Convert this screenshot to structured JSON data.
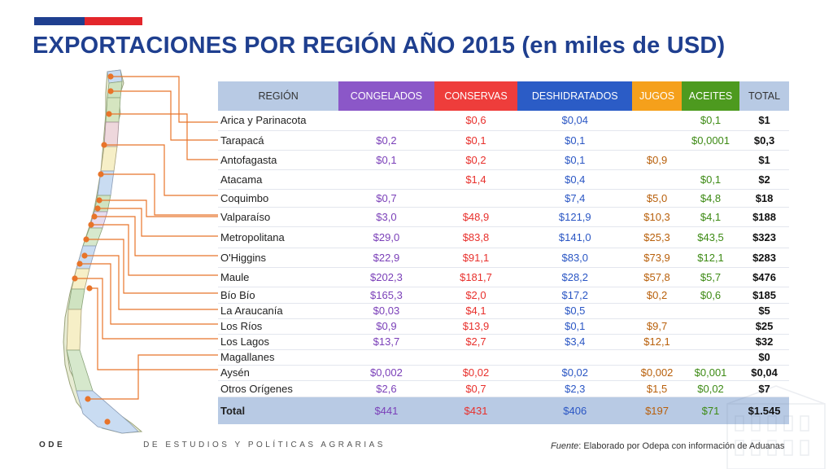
{
  "title": "EXPORTACIONES POR REGIÓN AÑO 2015 (en miles de USD)",
  "brand_colors": {
    "blue": "#1f3f8f",
    "red": "#e3262b"
  },
  "table": {
    "headers": [
      "REGIÓN",
      "CONGELADOS",
      "CONSERVAS",
      "DESHIDRATADOS",
      "JUGOS",
      "ACEITES",
      "TOTAL"
    ],
    "rows": [
      {
        "region": "Arica y Parinacota",
        "congelados": "",
        "conservas": "$0,6",
        "deshidratados": "$0,04",
        "jugos": "",
        "aceites": "$0,1",
        "total": "$1"
      },
      {
        "region": "Tarapacá",
        "congelados": "$0,2",
        "conservas": "$0,1",
        "deshidratados": "$0,1",
        "jugos": "",
        "aceites": "$0,0001",
        "total": "$0,3"
      },
      {
        "region": "Antofagasta",
        "congelados": "$0,1",
        "conservas": "$0,2",
        "deshidratados": "$0,1",
        "jugos": "$0,9",
        "aceites": "",
        "total": "$1"
      },
      {
        "region": "Atacama",
        "congelados": "",
        "conservas": "$1,4",
        "deshidratados": "$0,4",
        "jugos": "",
        "aceites": "$0,1",
        "total": "$2"
      },
      {
        "region": "Coquimbo",
        "congelados": "$0,7",
        "conservas": "",
        "deshidratados": "$7,4",
        "jugos": "$5,0",
        "aceites": "$4,8",
        "total": "$18"
      },
      {
        "region": "Valparaíso",
        "congelados": "$3,0",
        "conservas": "$48,9",
        "deshidratados": "$121,9",
        "jugos": "$10,3",
        "aceites": "$4,1",
        "total": "$188"
      },
      {
        "region": "Metropolitana",
        "congelados": "$29,0",
        "conservas": "$83,8",
        "deshidratados": "$141,0",
        "jugos": "$25,3",
        "aceites": "$43,5",
        "total": "$323"
      },
      {
        "region": "O'Higgins",
        "congelados": "$22,9",
        "conservas": "$91,1",
        "deshidratados": "$83,0",
        "jugos": "$73,9",
        "aceites": "$12,1",
        "total": "$283"
      },
      {
        "region": "Maule",
        "congelados": "$202,3",
        "conservas": "$181,7",
        "deshidratados": "$28,2",
        "jugos": "$57,8",
        "aceites": "$5,7",
        "total": "$476"
      },
      {
        "region": "Bío Bío",
        "congelados": "$165,3",
        "conservas": "$2,0",
        "deshidratados": "$17,2",
        "jugos": "$0,2",
        "aceites": "$0,6",
        "total": "$185"
      },
      {
        "region": "La Araucanía",
        "congelados": "$0,03",
        "conservas": "$4,1",
        "deshidratados": "$0,5",
        "jugos": "",
        "aceites": "",
        "total": "$5"
      },
      {
        "region": "Los Ríos",
        "congelados": "$0,9",
        "conservas": "$13,9",
        "deshidratados": "$0,1",
        "jugos": "$9,7",
        "aceites": "",
        "total": "$25"
      },
      {
        "region": "Los Lagos",
        "congelados": "$13,7",
        "conservas": "$2,7",
        "deshidratados": "$3,4",
        "jugos": "$12,1",
        "aceites": "",
        "total": "$32"
      },
      {
        "region": "Magallanes",
        "congelados": "",
        "conservas": "",
        "deshidratados": "",
        "jugos": "",
        "aceites": "",
        "total": "$0"
      },
      {
        "region": "Aysén",
        "congelados": "$0,002",
        "conservas": "$0,02",
        "deshidratados": "$0,02",
        "jugos": "$0,002",
        "aceites": "$0,001",
        "total": "$0,04"
      },
      {
        "region": "Otros Orígenes",
        "congelados": "$2,6",
        "conservas": "$0,7",
        "deshidratados": "$2,3",
        "jugos": "$1,5",
        "aceites": "$0,02",
        "total": "$7"
      }
    ],
    "total_row": {
      "region": "Total",
      "congelados": "$441",
      "conservas": "$431",
      "deshidratados": "$406",
      "jugos": "$197",
      "aceites": "$71",
      "total": "$1.545"
    }
  },
  "footer": {
    "org_prefix": "ODE",
    "org_text": "DE ESTUDIOS Y POLÍTICAS AGRARIAS",
    "source_label": "Fuente",
    "source_text": ": Elaborado por Odepa con información de Aduanas"
  }
}
